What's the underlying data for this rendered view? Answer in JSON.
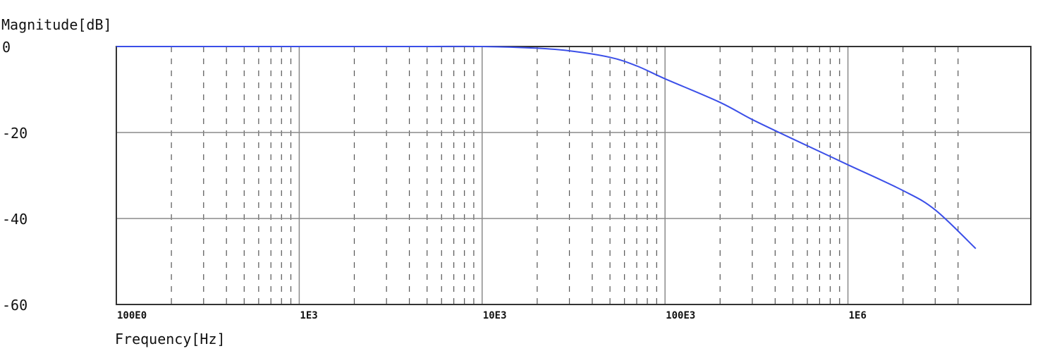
{
  "chart_data": {
    "type": "line",
    "xlabel": "Frequency[Hz]",
    "ylabel": "Magnitude[dB]",
    "x_scale": "log",
    "xlim": [
      100,
      5000000
    ],
    "ylim": [
      -60,
      0
    ],
    "x_ticks": [
      {
        "value": 100,
        "label": "100E0"
      },
      {
        "value": 1000,
        "label": "1E3"
      },
      {
        "value": 10000,
        "label": "10E3"
      },
      {
        "value": 100000,
        "label": "100E3"
      },
      {
        "value": 1000000,
        "label": "1E6"
      }
    ],
    "y_ticks": [
      {
        "value": 0,
        "label": "0"
      },
      {
        "value": -20,
        "label": "-20"
      },
      {
        "value": -40,
        "label": "-40"
      },
      {
        "value": -60,
        "label": "-60"
      }
    ],
    "grid": true,
    "colors": {
      "line": "#3b4fe8",
      "grid_major": "#8a8a8a",
      "grid_minor": "#555555",
      "frame": "#333333"
    },
    "series": [
      {
        "x": [
          100,
          1000,
          5000,
          10000,
          20000,
          30000,
          50000,
          70000,
          100000,
          200000,
          300000,
          500000,
          1000000,
          2000000,
          3000000,
          5000000
        ],
        "y": [
          0,
          0,
          0,
          0,
          -0.4,
          -1,
          -2.5,
          -4.5,
          -7.5,
          -13,
          -17,
          -21.5,
          -27.5,
          -33.5,
          -38,
          -47
        ]
      }
    ]
  }
}
